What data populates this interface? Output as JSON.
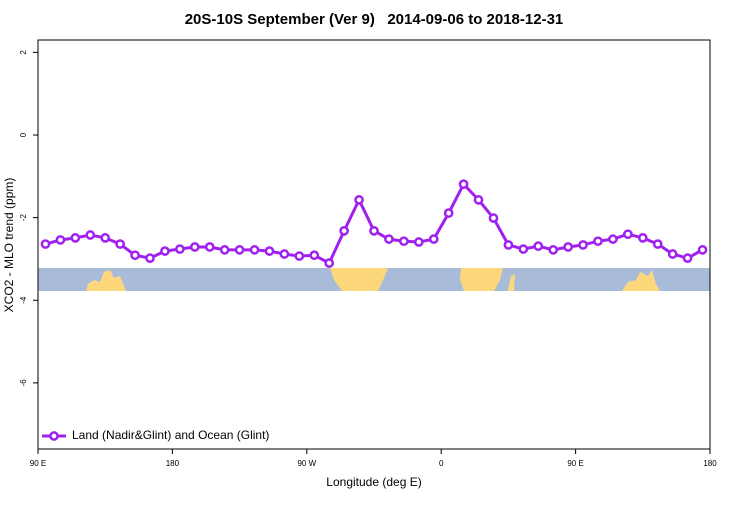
{
  "chart_data": {
    "type": "line",
    "title": "20S-10S September (Ver 9)   2014-09-06 to 2018-12-31",
    "x_label": "Longitude (deg E)",
    "y_label": "XCO2 - MLO trend (ppm)",
    "x": [
      95,
      105,
      115,
      125,
      135,
      145,
      155,
      165,
      175,
      185,
      195,
      205,
      215,
      225,
      235,
      245,
      255,
      265,
      275,
      285,
      295,
      305,
      315,
      325,
      335,
      345,
      355,
      365,
      375,
      385,
      395,
      405,
      415,
      425,
      435,
      445,
      455,
      465,
      475,
      485,
      495,
      505,
      515,
      525,
      535
    ],
    "series": [
      {
        "name": "Land (Nadir&Glint) and Ocean (Glint)",
        "color": "#a020f0",
        "values": [
          -2.64,
          -2.54,
          -2.49,
          -2.42,
          -2.49,
          -2.64,
          -2.91,
          -2.98,
          -2.81,
          -2.76,
          -2.71,
          -2.71,
          -2.78,
          -2.78,
          -2.78,
          -2.81,
          -2.88,
          -2.93,
          -2.91,
          -3.1,
          -2.32,
          -1.57,
          -2.32,
          -2.52,
          -2.57,
          -2.59,
          -2.52,
          -1.89,
          -1.19,
          -1.57,
          -2.01,
          -2.66,
          -2.76,
          -2.69,
          -2.78,
          -2.71,
          -2.66,
          -2.57,
          -2.52,
          -2.4,
          -2.49,
          -2.64,
          -2.88,
          -2.98,
          -2.78
        ]
      }
    ],
    "xlim": [
      90,
      540
    ],
    "xticks": [
      {
        "value": 90,
        "label": "90 E"
      },
      {
        "value": 180,
        "label": "180"
      },
      {
        "value": 270,
        "label": "90 W"
      },
      {
        "value": 360,
        "label": "0"
      },
      {
        "value": 450,
        "label": "90 E"
      },
      {
        "value": 540,
        "label": "180"
      }
    ],
    "ylim": [
      -7.6,
      2.3
    ],
    "yticks": [
      2,
      0,
      -2,
      -4,
      -6
    ],
    "grid": false,
    "legend": "bottom-left"
  }
}
